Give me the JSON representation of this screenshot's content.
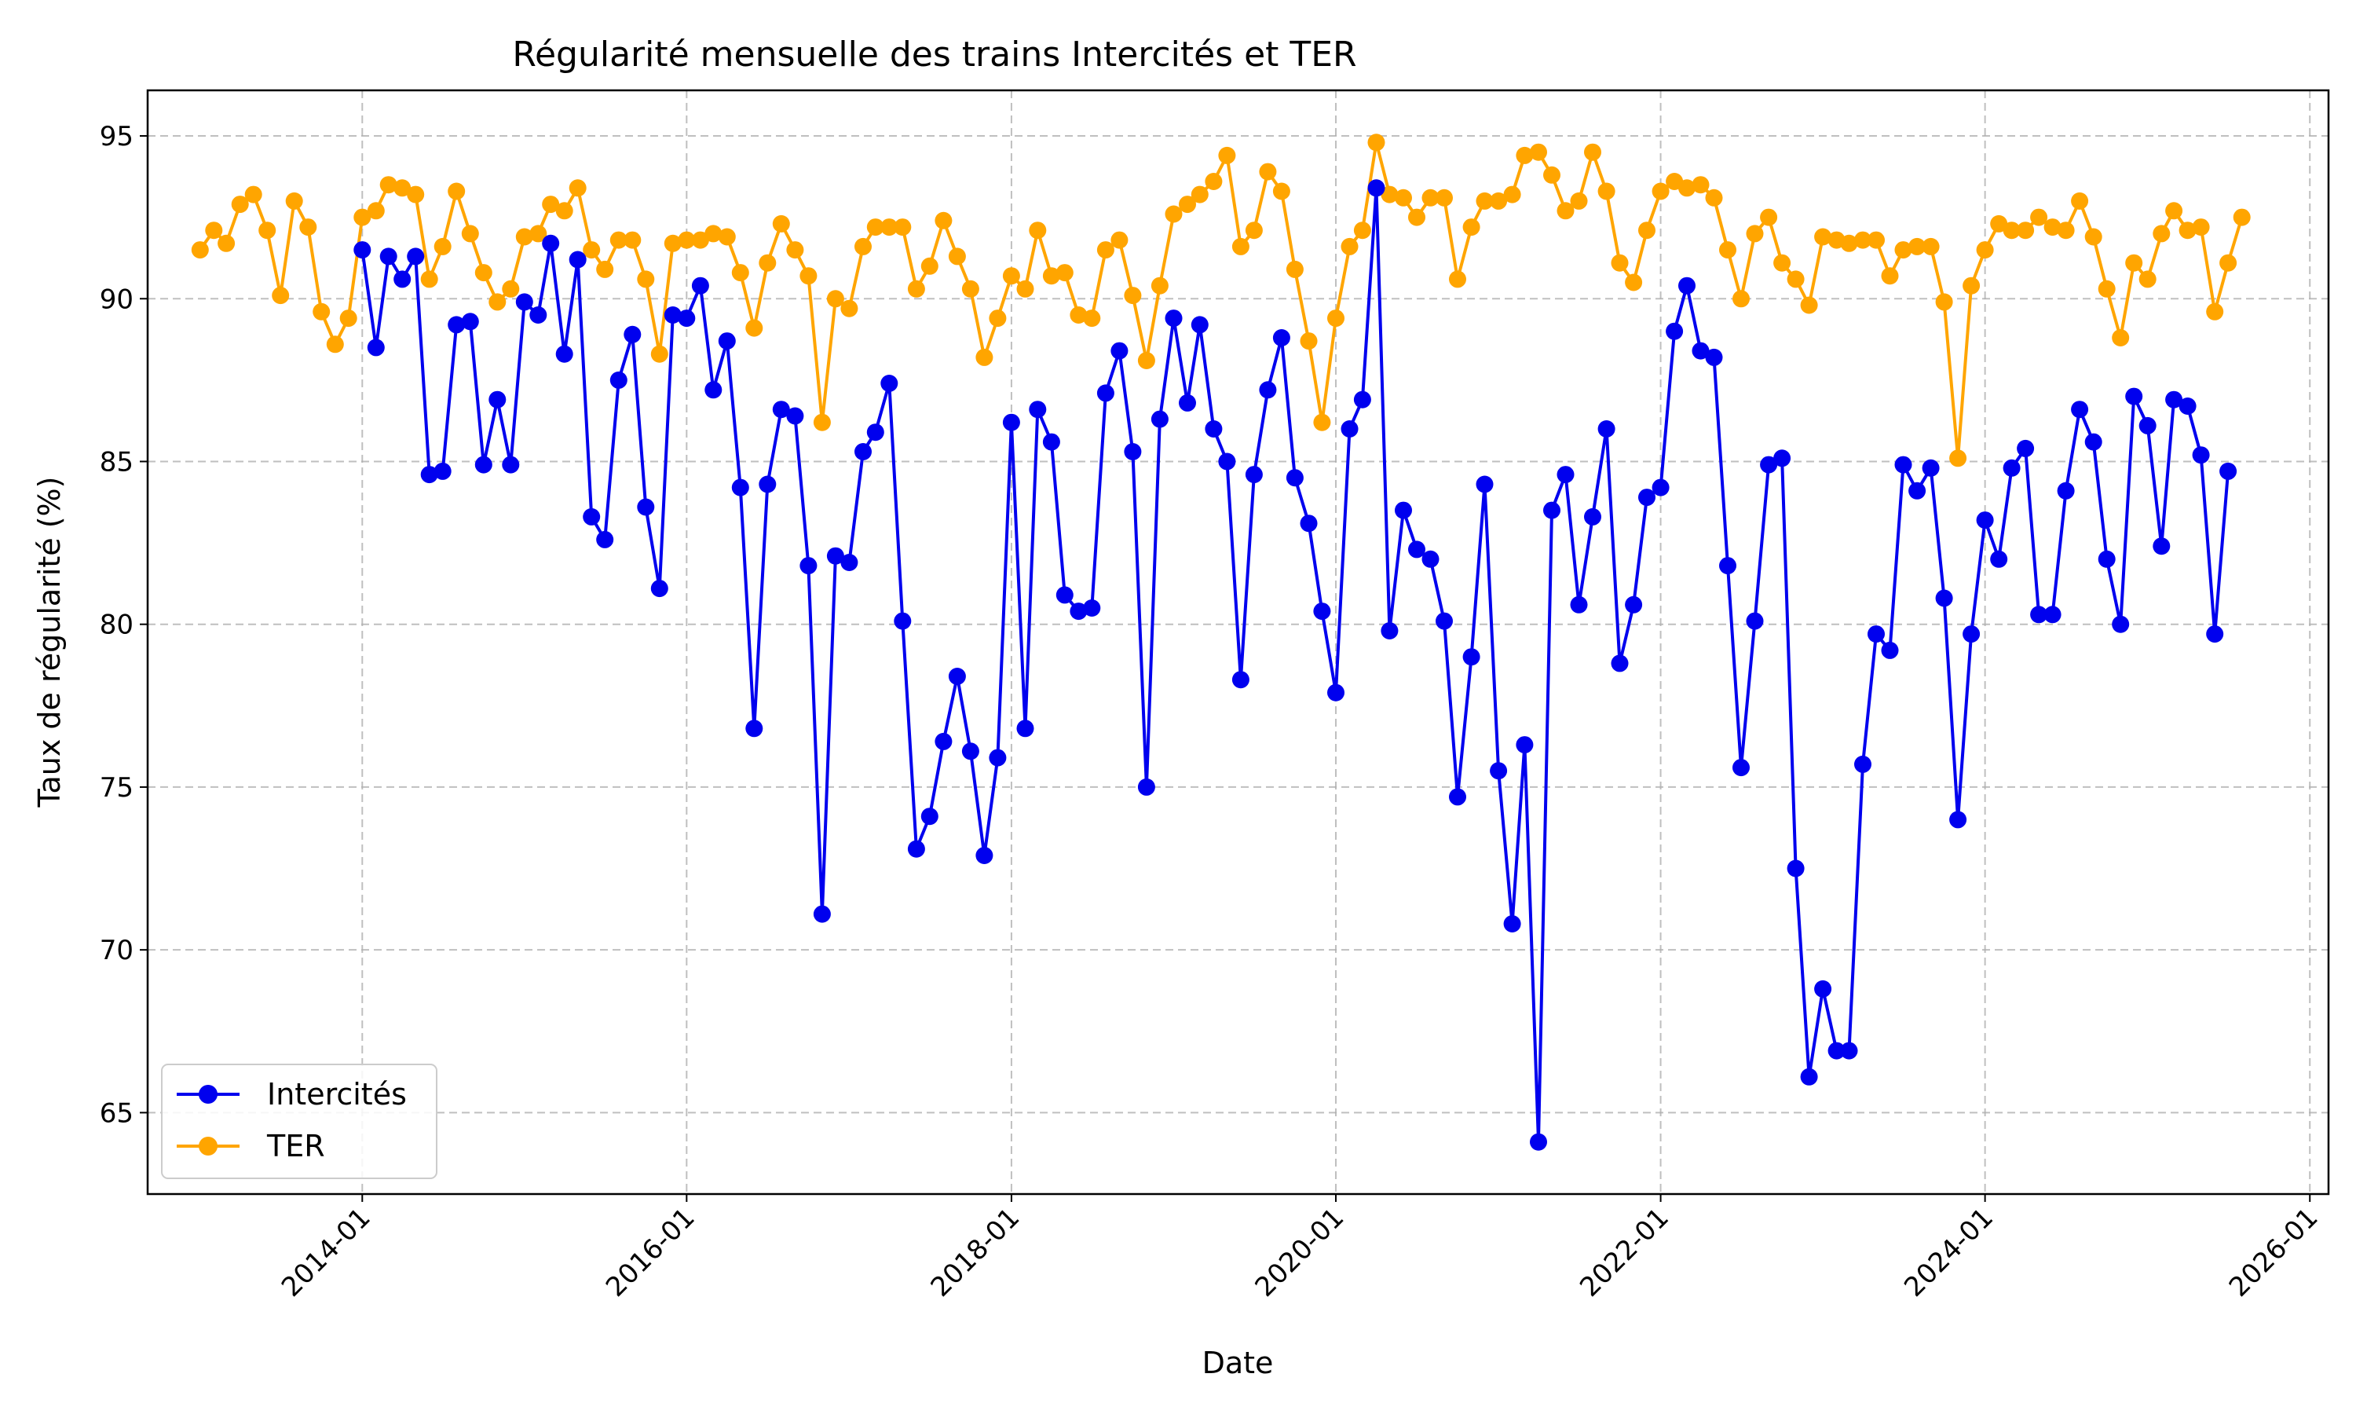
{
  "chart_data": {
    "type": "line",
    "title": "Régularité mensuelle des trains Intercités et TER",
    "xlabel": "Date",
    "ylabel": "Taux de régularité (%)",
    "xlim": [
      "2012-09-05",
      "2026-02-12"
    ],
    "ylim": [
      62.5,
      96.4
    ],
    "x_ticks": [
      "2014-01",
      "2016-01",
      "2018-01",
      "2020-01",
      "2022-01",
      "2024-01",
      "2026-01"
    ],
    "y_ticks": [
      65,
      70,
      75,
      80,
      85,
      90,
      95
    ],
    "grid": true,
    "legend_position": "bottom-left",
    "series": [
      {
        "name": "Intercités",
        "color": "#0000ee",
        "start_month": "2014-01",
        "values": [
          91.5,
          88.5,
          91.3,
          90.6,
          91.3,
          84.6,
          84.7,
          89.2,
          89.3,
          84.9,
          86.9,
          84.9,
          89.9,
          89.5,
          91.7,
          88.3,
          91.2,
          83.3,
          82.6,
          87.5,
          88.9,
          83.6,
          81.1,
          89.5,
          89.4,
          90.4,
          87.2,
          88.7,
          84.2,
          76.8,
          84.3,
          86.6,
          86.4,
          81.8,
          71.1,
          82.1,
          81.9,
          85.3,
          85.9,
          87.4,
          80.1,
          73.1,
          74.1,
          76.4,
          78.4,
          76.1,
          72.9,
          75.9,
          86.2,
          76.8,
          86.6,
          85.6,
          80.9,
          80.4,
          80.5,
          87.1,
          88.4,
          85.3,
          75.0,
          86.3,
          89.4,
          86.8,
          89.2,
          86.0,
          85.0,
          78.3,
          84.6,
          87.2,
          88.8,
          84.5,
          83.1,
          80.4,
          77.9,
          86.0,
          86.9,
          93.4,
          79.8,
          83.5,
          82.3,
          82.0,
          80.1,
          74.7,
          79.0,
          84.3,
          75.5,
          70.8,
          76.3,
          64.1,
          83.5,
          84.6,
          80.6,
          83.3,
          86.0,
          78.8,
          80.6,
          83.9,
          84.2,
          89.0,
          90.4,
          88.4,
          88.2,
          81.8,
          75.6,
          80.1,
          84.9,
          85.1,
          72.5,
          66.1,
          68.8,
          66.9,
          66.9,
          75.7,
          79.7,
          79.2,
          84.9,
          84.1,
          84.8,
          80.8,
          74.0,
          79.7,
          83.2,
          82.0,
          84.8,
          85.4,
          80.3,
          80.3,
          84.1,
          86.6,
          85.6,
          82.0,
          80.0,
          87.0,
          86.1,
          82.4,
          86.9,
          86.7,
          85.2,
          79.7,
          84.7
        ]
      },
      {
        "name": "TER",
        "color": "#ffa500",
        "start_month": "2013-01",
        "values": [
          91.5,
          92.1,
          91.7,
          92.9,
          93.2,
          92.1,
          90.1,
          93.0,
          92.2,
          89.6,
          88.6,
          89.4,
          92.5,
          92.7,
          93.5,
          93.4,
          93.2,
          90.6,
          91.6,
          93.3,
          92.0,
          90.8,
          89.9,
          90.3,
          91.9,
          92.0,
          92.9,
          92.7,
          93.4,
          91.5,
          90.9,
          91.8,
          91.8,
          90.6,
          88.3,
          91.7,
          91.8,
          91.8,
          92.0,
          91.9,
          90.8,
          89.1,
          91.1,
          92.3,
          91.5,
          90.7,
          86.2,
          90.0,
          89.7,
          91.6,
          92.2,
          92.2,
          92.2,
          90.3,
          91.0,
          92.4,
          91.3,
          90.3,
          88.2,
          89.4,
          90.7,
          90.3,
          92.1,
          90.7,
          90.8,
          89.5,
          89.4,
          91.5,
          91.8,
          90.1,
          88.1,
          90.4,
          92.6,
          92.9,
          93.2,
          93.6,
          94.4,
          91.6,
          92.1,
          93.9,
          93.3,
          90.9,
          88.7,
          86.2,
          89.4,
          91.6,
          92.1,
          94.8,
          93.2,
          93.1,
          92.5,
          93.1,
          93.1,
          90.6,
          92.2,
          93.0,
          93.0,
          93.2,
          94.4,
          94.5,
          93.8,
          92.7,
          93.0,
          94.5,
          93.3,
          91.1,
          90.5,
          92.1,
          93.3,
          93.6,
          93.4,
          93.5,
          93.1,
          91.5,
          90.0,
          92.0,
          92.5,
          91.1,
          90.6,
          89.8,
          91.9,
          91.8,
          91.7,
          91.8,
          91.8,
          90.7,
          91.5,
          91.6,
          91.6,
          89.9,
          85.1,
          90.4,
          91.5,
          92.3,
          92.1,
          92.1,
          92.5,
          92.2,
          92.1,
          93.0,
          91.9,
          90.3,
          88.8,
          91.1,
          90.6,
          92.0,
          92.7,
          92.1,
          92.2,
          89.6,
          91.1,
          92.5
        ]
      }
    ]
  }
}
